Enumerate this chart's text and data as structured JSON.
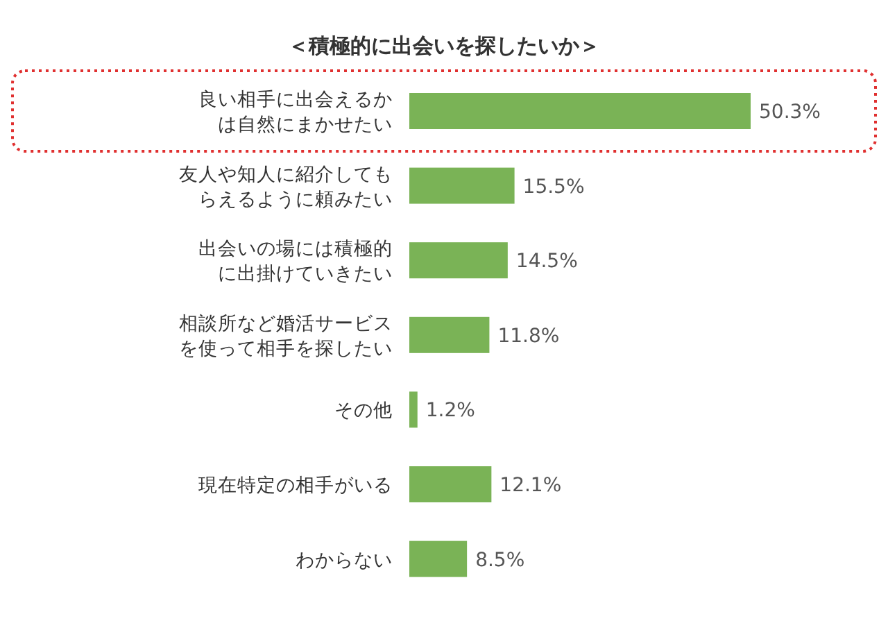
{
  "chart_data": {
    "type": "bar",
    "orientation": "horizontal",
    "title": "＜積極的に出会いを探したいか＞",
    "categories": [
      "良い相手に出会えるかは自然にまかせたい",
      "友人や知人に紹介してもらえるように頼みたい",
      "出会いの場には積極的に出掛けていきたい",
      "相談所など婚活サービスを使って相手を探したい",
      "その他",
      "現在特定の相手がいる",
      "わからない"
    ],
    "values": [
      50.3,
      15.5,
      14.5,
      11.8,
      1.2,
      12.1,
      8.5
    ],
    "value_labels": [
      "50.3%",
      "15.5%",
      "14.5%",
      "11.8%",
      "1.2%",
      "12.1%",
      "8.5%"
    ],
    "color": "#7ab356"
  }
}
